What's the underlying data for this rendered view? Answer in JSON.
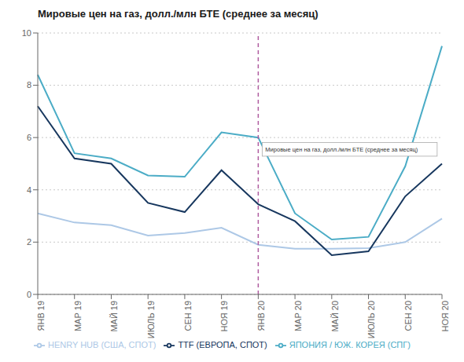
{
  "chart_data": {
    "type": "line",
    "title": "Мировые цен на газ, долл./млн БТЕ (среднее за месяц)",
    "categories": [
      "ЯНВ 19",
      "МАР 19",
      "МАЙ 19",
      "ИЮЛЬ 19",
      "СЕН 19",
      "НОЯ 19",
      "ЯНВ 20",
      "МАР 20",
      "МАЙ 20",
      "ИЮЛЬ 20",
      "СЕН 20",
      "НОЯ 20"
    ],
    "series": [
      {
        "name": "HENRY HUB (США, СПОТ)",
        "color": "#adc8e6",
        "values": [
          3.1,
          2.75,
          2.65,
          2.25,
          2.35,
          2.55,
          1.9,
          1.75,
          1.75,
          1.77,
          2.0,
          2.9
        ]
      },
      {
        "name": "ЯПОНИЯ / ЮЖ. КОРЕЯ (СПГ)",
        "color": "#4bacc6",
        "values": [
          8.4,
          5.4,
          5.2,
          4.55,
          4.5,
          6.2,
          6.0,
          3.1,
          2.1,
          2.2,
          4.9,
          9.5
        ]
      },
      {
        "name": "TTF (ЕВРОПА, СПОТ)",
        "color": "#17375e",
        "values": [
          7.2,
          5.2,
          5.0,
          3.5,
          3.15,
          4.75,
          3.45,
          2.8,
          1.5,
          1.65,
          3.75,
          5.0
        ]
      }
    ],
    "ylim": [
      0,
      10
    ],
    "yticks": [
      0,
      2,
      4,
      6,
      8,
      10
    ],
    "grid": true,
    "legend": "bottom",
    "reference_lines": [
      {
        "x": "ЯНВ 20",
        "color": "#b05da0",
        "line_style": "dashed"
      }
    ],
    "annotations": [
      {
        "text": "Мировые цен на газ, долл./млн БТЕ (среднее за месяц)",
        "x": "ЯНВ 20",
        "y": 5.55
      }
    ]
  }
}
